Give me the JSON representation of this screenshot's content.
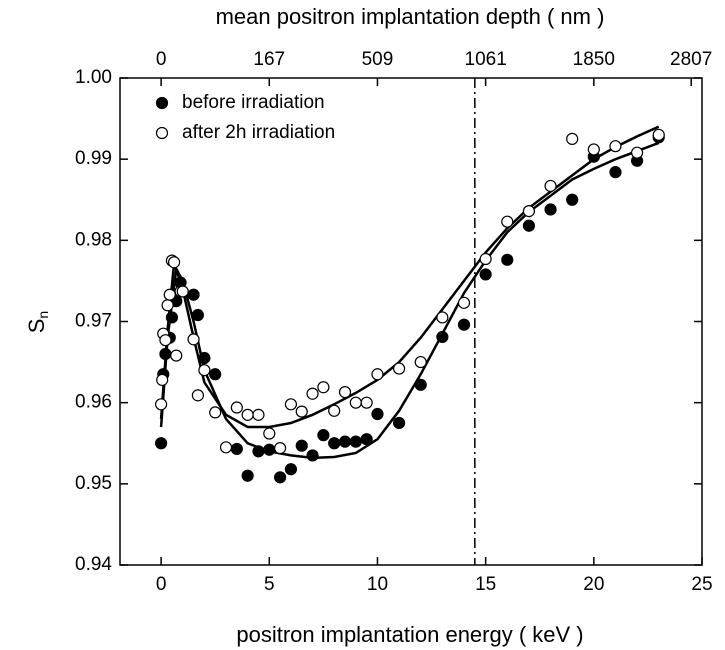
{
  "chart_data": {
    "type": "scatter",
    "xlabel": "positron implantation energy  ( keV )",
    "x2label": "mean positron implantation depth  ( nm )",
    "ylabel": "S",
    "ylabel_sub": "n",
    "xlim": [
      -1.9,
      25
    ],
    "ylim": [
      0.94,
      1.0
    ],
    "xticks": [
      0,
      5,
      10,
      15,
      20,
      25
    ],
    "yticks": [
      0.94,
      0.95,
      0.96,
      0.97,
      0.98,
      0.99,
      {
        "value": 1.0,
        "label": "1.00"
      }
    ],
    "x2ticks": [
      {
        "value": 0,
        "label": "0"
      },
      {
        "value": 5,
        "label": "167"
      },
      {
        "value": 10,
        "label": "509"
      },
      {
        "value": 15,
        "label": "1061"
      },
      {
        "value": 20,
        "label": "1850"
      },
      {
        "value": 24.5,
        "label": "2807"
      }
    ],
    "vline": 14.5,
    "legend": "upper left",
    "series": [
      {
        "name": "before irradiation",
        "color": "#000000",
        "filled": true,
        "x": [
          0,
          0.1,
          0.2,
          0.4,
          0.5,
          0.7,
          0.9,
          1.5,
          1.7,
          2,
          2.5,
          3.5,
          4,
          4.5,
          5,
          5.5,
          6,
          6.5,
          7,
          7.5,
          8,
          8.5,
          9,
          9.5,
          10,
          11,
          12,
          13,
          14,
          15,
          16,
          17,
          18,
          19,
          20,
          21,
          22,
          23
        ],
        "values": [
          0.955,
          0.9635,
          0.966,
          0.968,
          0.9705,
          0.9725,
          0.9748,
          0.9733,
          0.9708,
          0.9655,
          0.9635,
          0.9543,
          0.951,
          0.954,
          0.9542,
          0.9508,
          0.9518,
          0.9547,
          0.9535,
          0.956,
          0.955,
          0.9552,
          0.9552,
          0.9555,
          0.9586,
          0.9575,
          0.9622,
          0.9681,
          0.9696,
          0.9758,
          0.9776,
          0.9818,
          0.9838,
          0.985,
          0.9903,
          0.9884,
          0.9898,
          0.9927
        ],
        "fit": {
          "x": [
            0,
            0.3,
            0.7,
            1,
            1.5,
            2,
            3,
            4,
            5,
            6,
            7,
            8,
            9,
            10,
            11,
            12,
            13,
            14,
            15,
            16,
            17,
            18,
            19,
            20,
            21,
            22,
            23
          ],
          "values": [
            0.957,
            0.968,
            0.9765,
            0.975,
            0.97,
            0.964,
            0.958,
            0.955,
            0.954,
            0.9535,
            0.9532,
            0.9533,
            0.9538,
            0.9555,
            0.959,
            0.9635,
            0.9685,
            0.9735,
            0.9775,
            0.981,
            0.9835,
            0.9855,
            0.9875,
            0.9888,
            0.99,
            0.991,
            0.992
          ]
        }
      },
      {
        "name": "after 2h irradiation",
        "color": "#000000",
        "filled": false,
        "x": [
          0,
          0.05,
          0.1,
          0.2,
          0.3,
          0.4,
          0.5,
          0.6,
          0.7,
          0.9,
          1,
          1.5,
          1.7,
          2,
          2.5,
          3,
          3.5,
          4,
          4.5,
          5,
          5.5,
          6,
          6.5,
          7,
          7.5,
          8,
          8.5,
          9,
          9.5,
          10,
          11,
          12,
          13,
          14,
          15,
          16,
          17,
          18,
          19,
          20,
          21,
          22,
          23
        ],
        "values": [
          0.9598,
          0.9628,
          0.9685,
          0.9677,
          0.972,
          0.9733,
          0.9775,
          0.9773,
          0.9658,
          0.9737,
          0.9737,
          0.9678,
          0.9609,
          0.964,
          0.9588,
          0.9545,
          0.9594,
          0.9585,
          0.9585,
          0.9562,
          0.9544,
          0.9598,
          0.9589,
          0.9611,
          0.9619,
          0.959,
          0.9613,
          0.96,
          0.96,
          0.9635,
          0.9642,
          0.965,
          0.9705,
          0.9723,
          0.9777,
          0.9823,
          0.9836,
          0.9867,
          0.9925,
          0.9912,
          0.9916,
          0.9908,
          0.993
        ],
        "fit": {
          "x": [
            0,
            0.3,
            0.6,
            1,
            1.5,
            2,
            3,
            4,
            5,
            6,
            7,
            8,
            9,
            10,
            11,
            12,
            13,
            14,
            15,
            16,
            17,
            18,
            19,
            20,
            21,
            22,
            23
          ],
          "values": [
            0.958,
            0.969,
            0.9772,
            0.974,
            0.968,
            0.9625,
            0.9585,
            0.957,
            0.957,
            0.9575,
            0.9585,
            0.9598,
            0.9612,
            0.9628,
            0.965,
            0.968,
            0.9715,
            0.975,
            0.9785,
            0.9815,
            0.984,
            0.986,
            0.988,
            0.99,
            0.9915,
            0.9928,
            0.994
          ]
        }
      }
    ]
  }
}
